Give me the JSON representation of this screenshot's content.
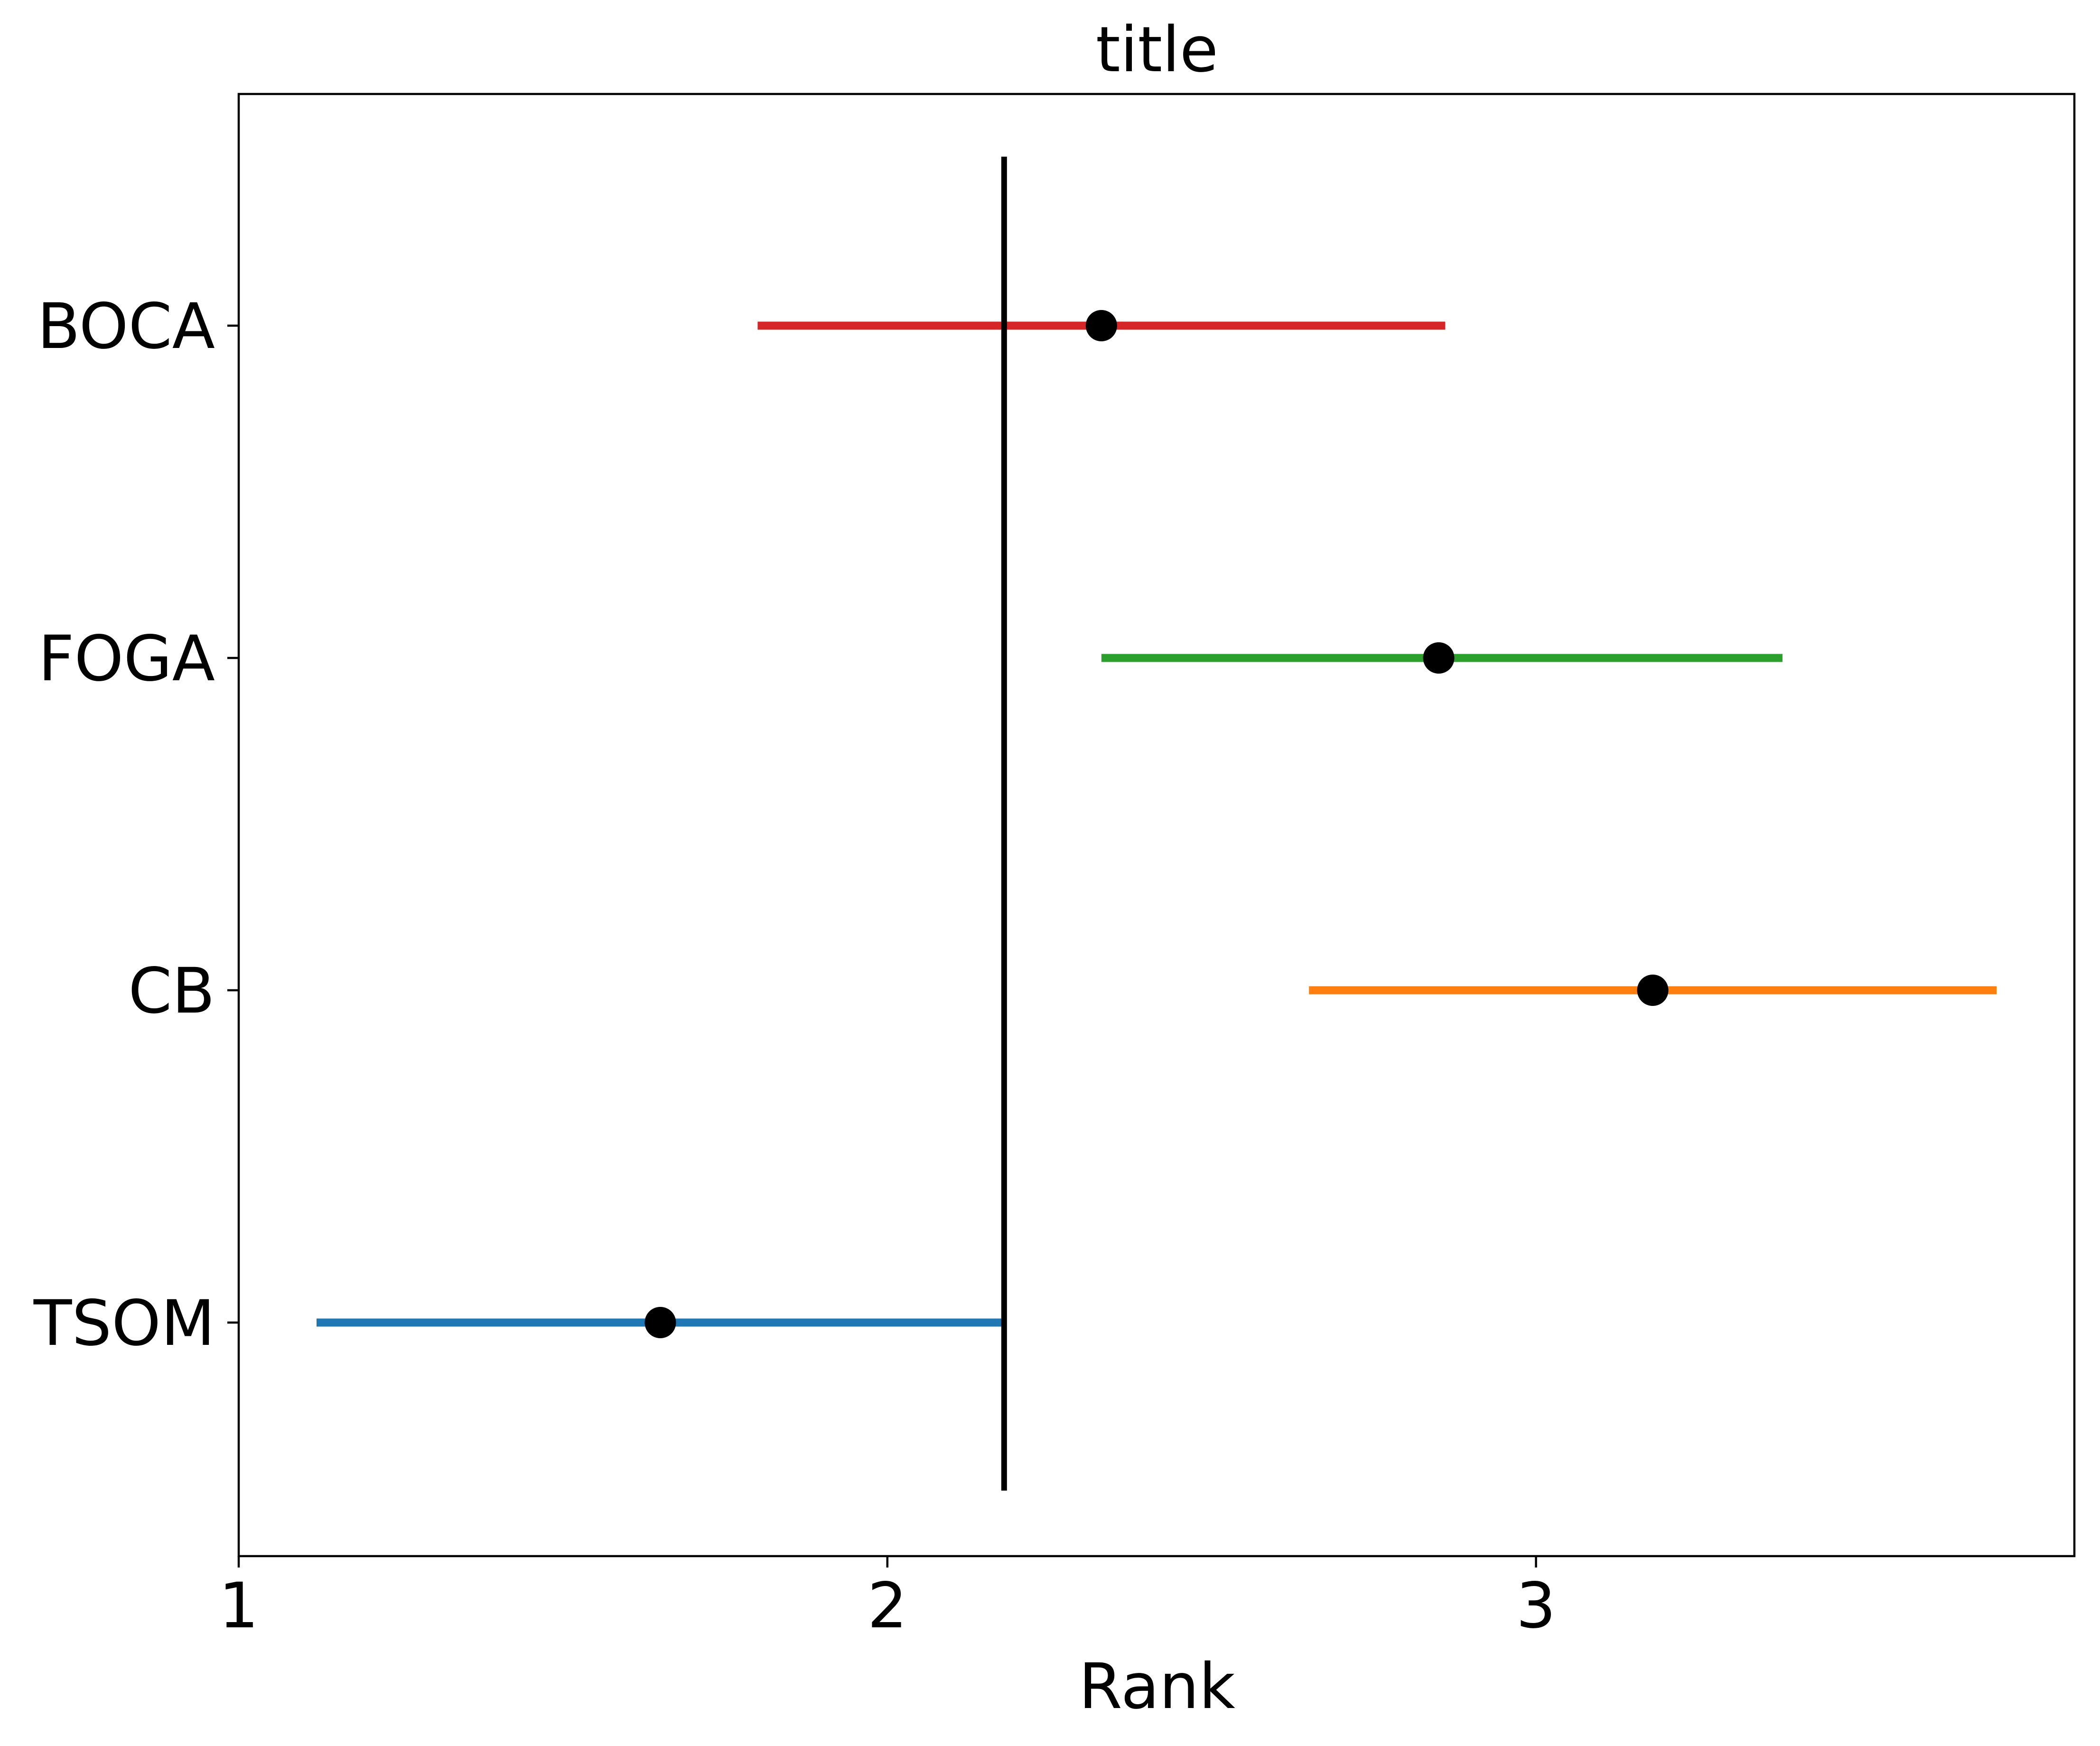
{
  "chart_data": {
    "type": "scatter",
    "title": "title",
    "xlabel": "Rank",
    "ylabel": "",
    "xlim": [
      1.0,
      3.83
    ],
    "x_ticks": [
      1,
      2,
      3
    ],
    "x_tick_labels": [
      "1",
      "2",
      "3"
    ],
    "categories": [
      "TSOM",
      "CB",
      "FOGA",
      "BOCA"
    ],
    "series": [
      {
        "category": "TSOM",
        "value": 1.65,
        "ci_low": 1.12,
        "ci_high": 2.18,
        "color": "#1f77b4"
      },
      {
        "category": "CB",
        "value": 3.18,
        "ci_low": 2.65,
        "ci_high": 3.71,
        "color": "#ff7f0e"
      },
      {
        "category": "FOGA",
        "value": 2.85,
        "ci_low": 2.33,
        "ci_high": 3.38,
        "color": "#2ca02c"
      },
      {
        "category": "BOCA",
        "value": 2.33,
        "ci_low": 1.8,
        "ci_high": 2.86,
        "color": "#d62728"
      }
    ],
    "reference_line": {
      "x": 2.18,
      "color": "#000000"
    },
    "point_color": "#000000",
    "grid": false,
    "legend": false
  }
}
